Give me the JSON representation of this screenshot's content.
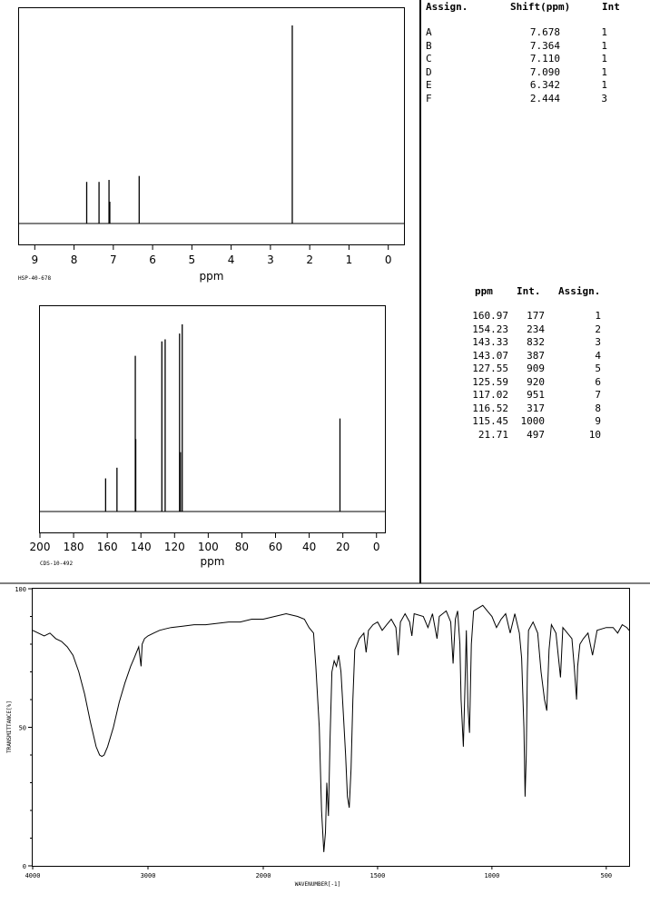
{
  "h1": {
    "headers": {
      "assign": "Assign.",
      "shift": "Shift(ppm)",
      "int": "Int"
    },
    "rows": [
      {
        "assign": "A",
        "shift": "7.678",
        "int": "1"
      },
      {
        "assign": "B",
        "shift": "7.364",
        "int": "1"
      },
      {
        "assign": "C",
        "shift": "7.110",
        "int": "1"
      },
      {
        "assign": "D",
        "shift": "7.090",
        "int": "1"
      },
      {
        "assign": "E",
        "shift": "6.342",
        "int": "1"
      },
      {
        "assign": "F",
        "shift": "2.444",
        "int": "3"
      }
    ]
  },
  "c13": {
    "headers": {
      "ppm": "ppm",
      "int": "Int.",
      "assign": "Assign."
    },
    "rows": [
      {
        "ppm": "160.97",
        "int": "177",
        "assign": "1"
      },
      {
        "ppm": "154.23",
        "int": "234",
        "assign": "2"
      },
      {
        "ppm": "143.33",
        "int": "832",
        "assign": "3"
      },
      {
        "ppm": "143.07",
        "int": "387",
        "assign": "4"
      },
      {
        "ppm": "127.55",
        "int": "909",
        "assign": "5"
      },
      {
        "ppm": "125.59",
        "int": "920",
        "assign": "6"
      },
      {
        "ppm": "117.02",
        "int": "951",
        "assign": "7"
      },
      {
        "ppm": "116.52",
        "int": "317",
        "assign": "8"
      },
      {
        "ppm": "115.45",
        "int": "1000",
        "assign": "9"
      },
      {
        "ppm": "21.71",
        "int": "497",
        "assign": "10"
      }
    ]
  },
  "chart_data": [
    {
      "type": "line",
      "xlabel": "ppm",
      "code": "HSP-40-678",
      "xlim": [
        9.4,
        -0.4
      ],
      "ticks": [
        "9",
        "8",
        "7",
        "6",
        "5",
        "4",
        "3",
        "2",
        "1",
        "0"
      ],
      "peaks": [
        {
          "x": 7.678,
          "h": 0.21
        },
        {
          "x": 7.364,
          "h": 0.21
        },
        {
          "x": 7.11,
          "h": 0.22
        },
        {
          "x": 7.09,
          "h": 0.11
        },
        {
          "x": 6.342,
          "h": 0.24
        },
        {
          "x": 2.444,
          "h": 1.0
        }
      ]
    },
    {
      "type": "bar",
      "xlabel": "ppm",
      "code": "CDS-10-492",
      "xlim": [
        200,
        -5
      ],
      "ticks": [
        "200",
        "180",
        "160",
        "140",
        "120",
        "100",
        "80",
        "60",
        "40",
        "20",
        "0"
      ],
      "peaks": [
        {
          "x": 160.97,
          "y": 177
        },
        {
          "x": 154.23,
          "y": 234
        },
        {
          "x": 143.33,
          "y": 832
        },
        {
          "x": 143.07,
          "y": 387
        },
        {
          "x": 127.55,
          "y": 909
        },
        {
          "x": 125.59,
          "y": 920
        },
        {
          "x": 117.02,
          "y": 951
        },
        {
          "x": 116.52,
          "y": 317
        },
        {
          "x": 115.45,
          "y": 1000
        },
        {
          "x": 21.71,
          "y": 497
        }
      ]
    },
    {
      "type": "line",
      "xlabel": "WAVENUMBER[-1]",
      "ylabel": "TRANSMITTANCE[%]",
      "xlim": [
        4000,
        400
      ],
      "ylim": [
        0,
        100
      ],
      "xticks": [
        "4000",
        "3000",
        "2000",
        "1500",
        "1000",
        "500"
      ],
      "yticks": [
        "100",
        "50",
        "0"
      ],
      "points": [
        [
          4000,
          85
        ],
        [
          3900,
          83
        ],
        [
          3850,
          84
        ],
        [
          3800,
          82
        ],
        [
          3750,
          81
        ],
        [
          3700,
          79
        ],
        [
          3650,
          76
        ],
        [
          3600,
          70
        ],
        [
          3550,
          62
        ],
        [
          3500,
          52
        ],
        [
          3450,
          43
        ],
        [
          3420,
          40
        ],
        [
          3400,
          39.5
        ],
        [
          3380,
          40
        ],
        [
          3350,
          43
        ],
        [
          3300,
          50
        ],
        [
          3250,
          59
        ],
        [
          3200,
          66
        ],
        [
          3150,
          72
        ],
        [
          3120,
          75
        ],
        [
          3100,
          77
        ],
        [
          3080,
          79
        ],
        [
          3060,
          72
        ],
        [
          3050,
          80
        ],
        [
          3030,
          82
        ],
        [
          3000,
          83
        ],
        [
          2950,
          84
        ],
        [
          2900,
          85
        ],
        [
          2850,
          85.5
        ],
        [
          2800,
          86
        ],
        [
          2700,
          86.5
        ],
        [
          2600,
          87
        ],
        [
          2500,
          87
        ],
        [
          2400,
          87.5
        ],
        [
          2300,
          88
        ],
        [
          2200,
          88
        ],
        [
          2100,
          89
        ],
        [
          2000,
          89
        ],
        [
          1950,
          90
        ],
        [
          1900,
          91
        ],
        [
          1850,
          90
        ],
        [
          1820,
          89
        ],
        [
          1800,
          86
        ],
        [
          1780,
          84
        ],
        [
          1770,
          72
        ],
        [
          1755,
          50
        ],
        [
          1745,
          20
        ],
        [
          1735,
          5
        ],
        [
          1728,
          12
        ],
        [
          1722,
          30
        ],
        [
          1715,
          18
        ],
        [
          1708,
          45
        ],
        [
          1700,
          70
        ],
        [
          1690,
          74
        ],
        [
          1680,
          72
        ],
        [
          1670,
          76
        ],
        [
          1660,
          70
        ],
        [
          1650,
          55
        ],
        [
          1640,
          40
        ],
        [
          1632,
          25
        ],
        [
          1624,
          21
        ],
        [
          1616,
          35
        ],
        [
          1608,
          60
        ],
        [
          1600,
          78
        ],
        [
          1580,
          82
        ],
        [
          1560,
          84
        ],
        [
          1550,
          77
        ],
        [
          1540,
          85
        ],
        [
          1520,
          87
        ],
        [
          1500,
          88
        ],
        [
          1480,
          85
        ],
        [
          1460,
          87
        ],
        [
          1440,
          89
        ],
        [
          1420,
          86
        ],
        [
          1410,
          76
        ],
        [
          1400,
          88
        ],
        [
          1380,
          91
        ],
        [
          1360,
          88
        ],
        [
          1350,
          83
        ],
        [
          1340,
          91
        ],
        [
          1300,
          90
        ],
        [
          1280,
          86
        ],
        [
          1260,
          91
        ],
        [
          1240,
          82
        ],
        [
          1230,
          90
        ],
        [
          1200,
          92
        ],
        [
          1180,
          88
        ],
        [
          1170,
          73
        ],
        [
          1160,
          89
        ],
        [
          1150,
          92
        ],
        [
          1140,
          80
        ],
        [
          1135,
          60
        ],
        [
          1125,
          43
        ],
        [
          1118,
          65
        ],
        [
          1112,
          85
        ],
        [
          1105,
          58
        ],
        [
          1098,
          48
        ],
        [
          1090,
          80
        ],
        [
          1080,
          92
        ],
        [
          1060,
          93
        ],
        [
          1040,
          94
        ],
        [
          1020,
          92
        ],
        [
          1000,
          90
        ],
        [
          980,
          86
        ],
        [
          960,
          89
        ],
        [
          940,
          91
        ],
        [
          920,
          84
        ],
        [
          900,
          91
        ],
        [
          880,
          84
        ],
        [
          870,
          75
        ],
        [
          860,
          50
        ],
        [
          855,
          25
        ],
        [
          850,
          40
        ],
        [
          845,
          70
        ],
        [
          840,
          85
        ],
        [
          820,
          88
        ],
        [
          800,
          84
        ],
        [
          785,
          70
        ],
        [
          770,
          60
        ],
        [
          760,
          56
        ],
        [
          750,
          78
        ],
        [
          740,
          87
        ],
        [
          720,
          84
        ],
        [
          700,
          68
        ],
        [
          690,
          86
        ],
        [
          670,
          84
        ],
        [
          650,
          82
        ],
        [
          640,
          72
        ],
        [
          630,
          60
        ],
        [
          625,
          72
        ],
        [
          615,
          80
        ],
        [
          600,
          82
        ],
        [
          580,
          84
        ],
        [
          560,
          76
        ],
        [
          540,
          85
        ],
        [
          500,
          86
        ],
        [
          470,
          86
        ],
        [
          450,
          84
        ],
        [
          430,
          87
        ],
        [
          410,
          86
        ],
        [
          400,
          85
        ]
      ]
    }
  ]
}
